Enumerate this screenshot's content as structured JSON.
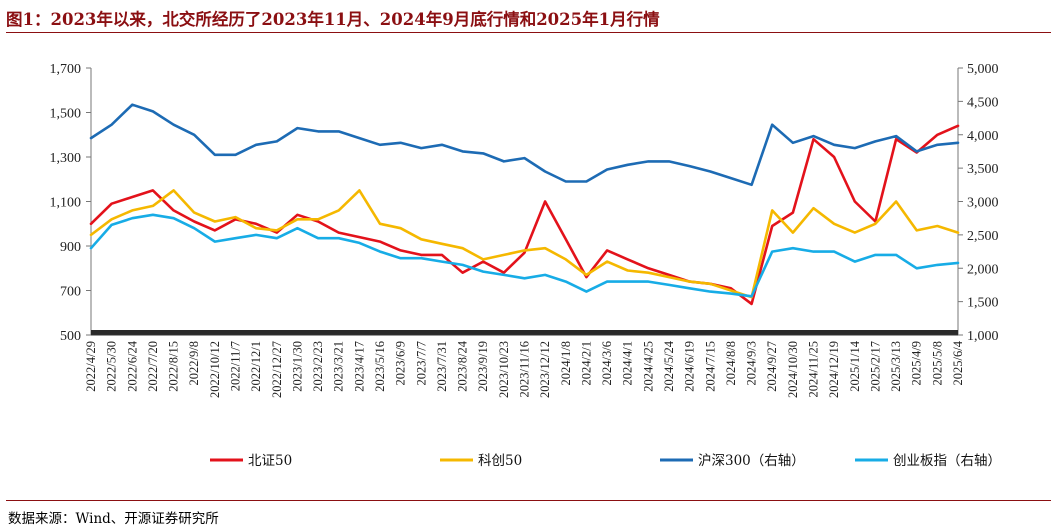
{
  "title": "图1：2023年以来，北交所经历了2023年11月、2024年9月底行情和2025年1月行情",
  "source": "数据来源：Wind、开源证券研究所",
  "chart_data": {
    "type": "line",
    "x": [
      "2022/4/29",
      "2022/5/30",
      "2022/6/24",
      "2022/7/20",
      "2022/8/15",
      "2022/9/8",
      "2022/10/12",
      "2022/11/7",
      "2022/12/1",
      "2022/12/27",
      "2023/1/30",
      "2023/2/23",
      "2023/3/21",
      "2023/4/17",
      "2023/5/16",
      "2023/6/9",
      "2023/7/7",
      "2023/7/31",
      "2023/8/24",
      "2023/9/19",
      "2023/10/23",
      "2023/11/16",
      "2023/12/12",
      "2024/1/8",
      "2024/2/1",
      "2024/3/6",
      "2024/4/1",
      "2024/4/25",
      "2024/5/24",
      "2024/6/19",
      "2024/7/15",
      "2024/8/8",
      "2024/9/3",
      "2024/9/27",
      "2024/10/30",
      "2024/11/25",
      "2024/12/19",
      "2025/1/14",
      "2025/2/17",
      "2025/3/13",
      "2025/4/9",
      "2025/5/8",
      "2025/6/4"
    ],
    "y_left": {
      "min": 500,
      "max": 1700,
      "ticks": [
        500,
        700,
        900,
        1100,
        1300,
        1500,
        1700
      ],
      "tick_labels": [
        "500",
        "700",
        "900",
        "1,100",
        "1,300",
        "1,500",
        "1,700"
      ]
    },
    "y_right": {
      "min": 1000,
      "max": 5000,
      "ticks": [
        1000,
        1500,
        2000,
        2500,
        3000,
        3500,
        4000,
        4500,
        5000
      ],
      "tick_labels": [
        "1,000",
        "1,500",
        "2,000",
        "2,500",
        "3,000",
        "3,500",
        "4,000",
        "4,500",
        "5,000"
      ]
    },
    "grid": false,
    "legend_position": "bottom",
    "series": [
      {
        "name": "北证50",
        "axis": "left",
        "color": "#e3121b",
        "values": [
          1000,
          1090,
          1120,
          1150,
          1060,
          1010,
          970,
          1020,
          1000,
          960,
          1040,
          1010,
          960,
          940,
          920,
          880,
          860,
          860,
          780,
          830,
          780,
          870,
          1100,
          930,
          760,
          880,
          840,
          800,
          770,
          740,
          730,
          710,
          640,
          990,
          1050,
          1380,
          1300,
          1100,
          1010,
          1380,
          1320,
          1400,
          1440
        ]
      },
      {
        "name": "科创50",
        "axis": "left",
        "color": "#f5b800",
        "values": [
          950,
          1020,
          1060,
          1080,
          1150,
          1050,
          1010,
          1030,
          980,
          970,
          1020,
          1020,
          1060,
          1150,
          1000,
          980,
          930,
          910,
          890,
          840,
          860,
          880,
          890,
          840,
          770,
          830,
          790,
          780,
          760,
          740,
          730,
          700,
          670,
          1060,
          960,
          1070,
          1000,
          960,
          1000,
          1100,
          970,
          990,
          960
        ]
      },
      {
        "name": "沪深300（右轴）",
        "axis": "right",
        "color": "#1d6bb4",
        "values": [
          3950,
          4150,
          4450,
          4350,
          4150,
          4000,
          3700,
          3700,
          3850,
          3900,
          4100,
          4050,
          4050,
          3950,
          3850,
          3880,
          3800,
          3850,
          3750,
          3720,
          3600,
          3650,
          3450,
          3300,
          3300,
          3480,
          3550,
          3600,
          3600,
          3530,
          3450,
          3350,
          3250,
          4150,
          3880,
          3980,
          3850,
          3800,
          3900,
          3980,
          3750,
          3850,
          3880
        ]
      },
      {
        "name": "创业板指（右轴）",
        "axis": "right",
        "color": "#17ace6",
        "values": [
          2300,
          2650,
          2750,
          2800,
          2750,
          2600,
          2400,
          2450,
          2500,
          2450,
          2600,
          2450,
          2450,
          2380,
          2250,
          2150,
          2150,
          2100,
          2050,
          1950,
          1900,
          1850,
          1900,
          1800,
          1650,
          1800,
          1800,
          1800,
          1750,
          1700,
          1650,
          1620,
          1580,
          2250,
          2300,
          2250,
          2250,
          2100,
          2200,
          2200,
          2000,
          2050,
          2080
        ]
      }
    ]
  }
}
